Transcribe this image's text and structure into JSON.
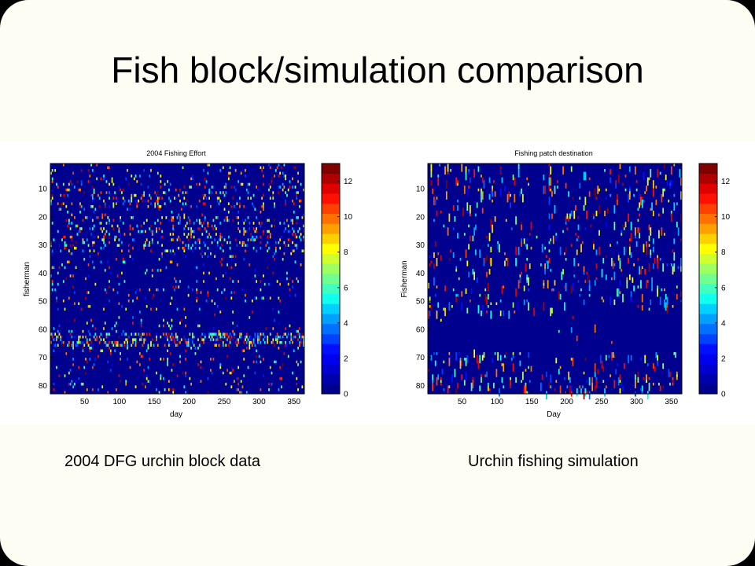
{
  "slide": {
    "title": "Fish block/simulation comparison",
    "captions": [
      "2004 DFG urchin block data",
      "Urchin fishing simulation"
    ]
  },
  "chart_data": [
    {
      "type": "heatmap",
      "title": "2004 Fishing Effort",
      "xlabel": "day",
      "ylabel": "fisherman",
      "xlim": [
        1,
        365
      ],
      "ylim": [
        1,
        83
      ],
      "x_ticks": [
        50,
        100,
        150,
        200,
        250,
        300,
        350
      ],
      "y_ticks": [
        10,
        20,
        30,
        40,
        50,
        60,
        70,
        80
      ],
      "colorbar": {
        "min": 0,
        "max": 13,
        "ticks": [
          0,
          2,
          4,
          6,
          8,
          10,
          12
        ]
      },
      "description": "sparse events, mostly values 0; rows 62-66 and 20-32 denser"
    },
    {
      "type": "heatmap",
      "title": "Fishing patch destination",
      "xlabel": "Day",
      "ylabel": "Fisherman",
      "xlim": [
        1,
        365
      ],
      "ylim": [
        1,
        83
      ],
      "x_ticks": [
        50,
        100,
        150,
        200,
        250,
        300,
        350
      ],
      "y_ticks": [
        10,
        20,
        30,
        40,
        50,
        60,
        70,
        80
      ],
      "colorbar": {
        "min": 0,
        "max": 13,
        "ticks": [
          0,
          2,
          4,
          6,
          8,
          10,
          12
        ]
      },
      "description": "sparse short vertical events; empty band near days 150-165 and fishermen 55-68"
    }
  ],
  "colors": {
    "background": "#000080",
    "slide": "#fdfdf3",
    "colormap": [
      "#00008f",
      "#0000af",
      "#0000cf",
      "#0000ef",
      "#0010ff",
      "#0040ff",
      "#0070ff",
      "#00a0ff",
      "#00d0ff",
      "#10ffef",
      "#40ffbf",
      "#70ff8f",
      "#a0ff60",
      "#d0ff30",
      "#ffff00",
      "#ffd000",
      "#ffa000",
      "#ff7000",
      "#ff4000",
      "#ff1000",
      "#df0000",
      "#af0000",
      "#800000"
    ]
  }
}
